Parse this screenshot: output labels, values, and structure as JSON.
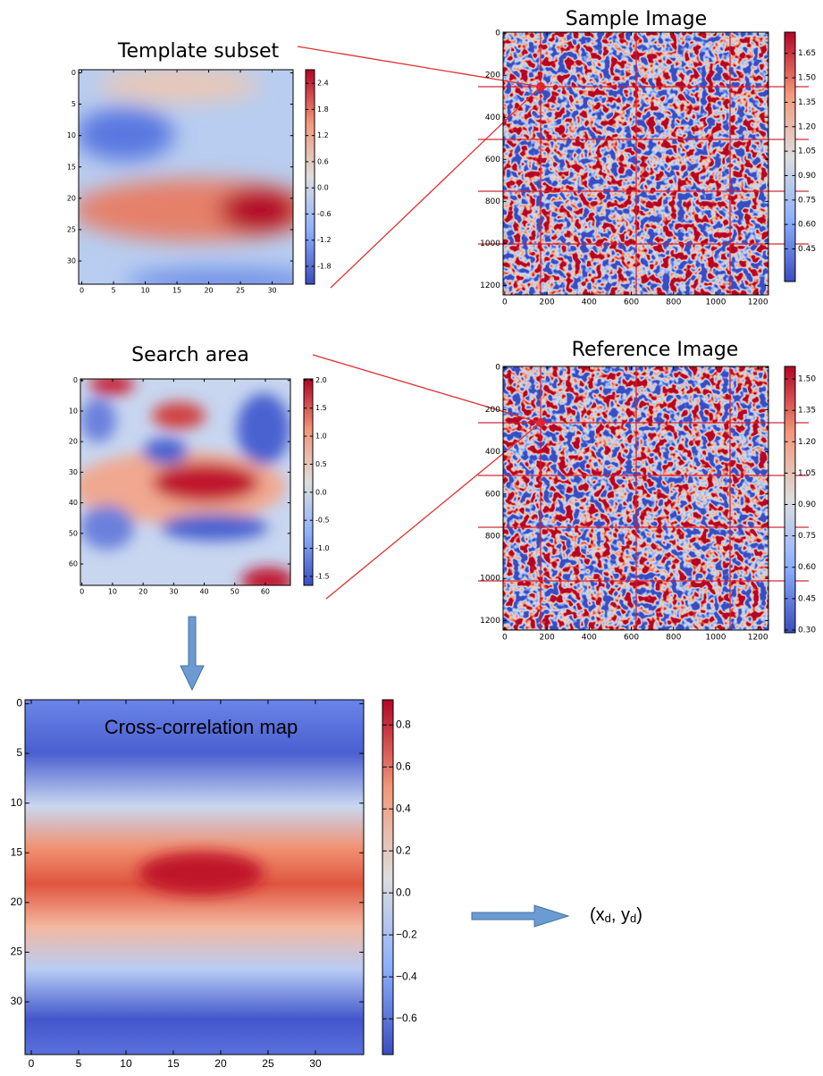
{
  "panels": [
    {
      "title": "Template subset",
      "xlim": [
        -0.5,
        33.3
      ],
      "ylim": [
        33.7,
        -0.5
      ],
      "xticks": [
        0,
        5,
        10,
        15,
        20,
        25,
        30
      ],
      "yticks": [
        0,
        5,
        10,
        15,
        20,
        25,
        30
      ],
      "colorbar": {
        "lim": [
          -2.21,
          2.71
        ],
        "ticks": [
          2.4,
          1.8,
          1.2,
          0.6,
          {
            "value": 0,
            "label": "0.0"
          },
          -0.6,
          -1.2,
          -1.8
        ]
      }
    },
    {
      "title": "Sample Image",
      "xlim": [
        -8,
        1250
      ],
      "ylim": [
        1245,
        -5
      ],
      "xticks": [
        0,
        200,
        400,
        600,
        800,
        1000,
        1200
      ],
      "yticks": [
        0,
        200,
        400,
        600,
        800,
        1000,
        1200
      ],
      "colorbar": {
        "lim": [
          0.25,
          1.78
        ],
        "ticks": [
          1.65,
          {
            "value": 1.5,
            "label": "1.50"
          },
          1.35,
          {
            "value": 1.2,
            "label": "1.20"
          },
          1.05,
          {
            "value": 0.9,
            "label": "0.90"
          },
          0.75,
          {
            "value": 0.6,
            "label": "0.60"
          },
          0.45
        ]
      }
    },
    {
      "title": "Search area",
      "xlim": [
        -0.5,
        68.2
      ],
      "ylim": [
        67,
        -0.5
      ],
      "xticks": [
        0,
        10,
        20,
        30,
        40,
        50,
        60
      ],
      "yticks": [
        0,
        10,
        20,
        30,
        40,
        50,
        60
      ],
      "colorbar": {
        "lim": [
          -1.66,
          2.02
        ],
        "ticks": [
          {
            "value": 2,
            "label": "2.0"
          },
          1.5,
          {
            "value": 1,
            "label": "1.0"
          },
          0.5,
          {
            "value": 0,
            "label": "0.0"
          },
          -0.5,
          {
            "value": -1,
            "label": "-1.0"
          },
          -1.5
        ]
      }
    },
    {
      "title": "Reference Image",
      "xlim": [
        -8,
        1250
      ],
      "ylim": [
        1245,
        -5
      ],
      "xticks": [
        0,
        200,
        400,
        600,
        800,
        1000,
        1200
      ],
      "yticks": [
        0,
        200,
        400,
        600,
        800,
        1000,
        1200
      ],
      "colorbar": {
        "lim": [
          0.287,
          1.56
        ],
        "ticks": [
          {
            "value": 1.5,
            "label": "1.50"
          },
          1.35,
          {
            "value": 1.2,
            "label": "1.20"
          },
          1.05,
          {
            "value": 0.9,
            "label": "0.90"
          },
          0.75,
          {
            "value": 0.6,
            "label": "0.60"
          },
          0.45,
          {
            "value": 0.3,
            "label": "0.30"
          }
        ]
      }
    },
    {
      "title": "Cross-correlation map",
      "xlim": [
        -0.66,
        35.1
      ],
      "ylim": [
        35.3,
        -0.4
      ],
      "xticks": [
        0,
        5,
        10,
        15,
        20,
        25,
        30
      ],
      "yticks": [
        0,
        5,
        10,
        15,
        20,
        25,
        30
      ],
      "colorbar": {
        "lim": [
          -0.77,
          0.92
        ],
        "ticks": [
          0.8,
          0.6,
          0.4,
          0.2,
          {
            "value": 0,
            "label": "0.0"
          },
          {
            "value": -0.2,
            "label": "−0.2"
          },
          {
            "value": -0.4,
            "label": "−0.4"
          },
          {
            "value": -0.6,
            "label": "−0.6"
          }
        ]
      }
    }
  ],
  "result": [
    {
      "text": "(x"
    },
    {
      "text": "d",
      "sub": true
    },
    {
      "text": ", y"
    },
    {
      "text": "d",
      "sub": true
    },
    {
      "text": ")"
    }
  ]
}
